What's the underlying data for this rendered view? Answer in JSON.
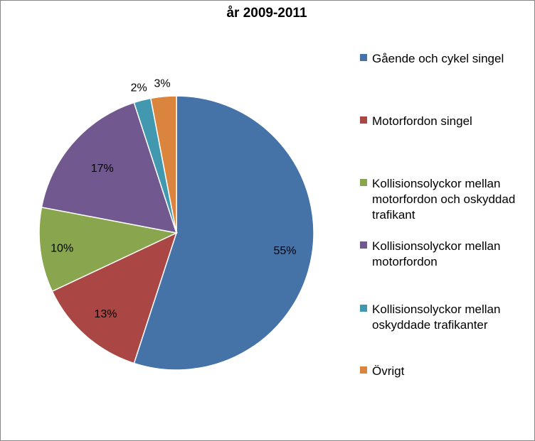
{
  "chart_data": {
    "type": "pie",
    "title": "år 2009-2011",
    "categories": [
      "Gående och cykel singel",
      "Motorfordon singel",
      "Kollisionsolyckor mellan motorfordon och oskyddad trafikant",
      "Kollisionsolyckor mellan motorfordon",
      "Kollisionsolyckor mellan oskyddade trafikanter",
      "Övrigt"
    ],
    "values": [
      55,
      13,
      10,
      17,
      2,
      3
    ],
    "value_labels": [
      "55%",
      "13%",
      "10%",
      "17%",
      "2%",
      "3%"
    ],
    "colors": [
      "#4572A7",
      "#AA4643",
      "#89A54E",
      "#71588F",
      "#4198AF",
      "#DB843D"
    ],
    "legend_position": "right",
    "start_angle_deg": 0,
    "direction": "clockwise"
  }
}
